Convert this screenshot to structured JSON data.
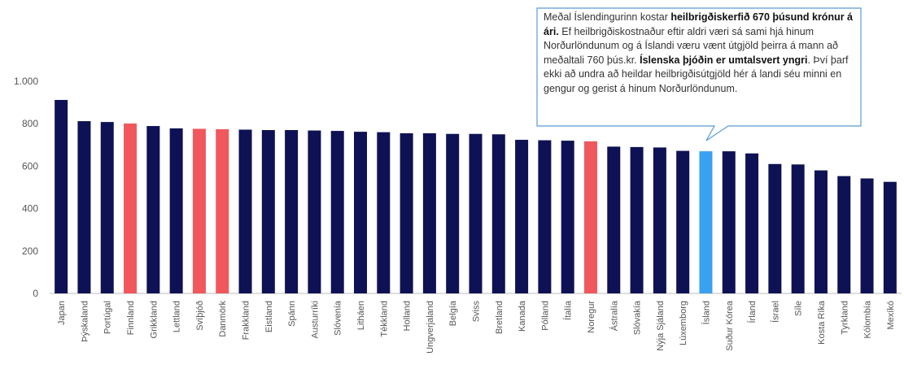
{
  "chart_data": {
    "type": "bar",
    "categories": [
      "Japan",
      "Þýskaland",
      "Portúgal",
      "Finnland",
      "Grikkland",
      "Lettland",
      "Svíþjóð",
      "Danmörk",
      "Frakkland",
      "Eistland",
      "Spánn",
      "Austurríki",
      "Slóvenía",
      "Litháen",
      "Tékkland",
      "Holland",
      "Ungverjaland",
      "Belgía",
      "Sviss",
      "Bretland",
      "Kanada",
      "Pólland",
      "Ítalía",
      "Noregur",
      "Ástralía",
      "Slóvakía",
      "Nýja Sjáland",
      "Lúxemborg",
      "Ísland",
      "Suður Kórea",
      "Írland",
      "Ísrael",
      "Síle",
      "Kosta Ríka",
      "Tyrkland",
      "Kólombía",
      "Mexíkó"
    ],
    "values": [
      912,
      812,
      808,
      801,
      789,
      778,
      776,
      774,
      772,
      770,
      770,
      768,
      766,
      762,
      760,
      755,
      755,
      752,
      752,
      750,
      724,
      722,
      720,
      717,
      692,
      690,
      688,
      672,
      670,
      670,
      660,
      610,
      608,
      580,
      553,
      542,
      526
    ],
    "colors": [
      "#0e1254",
      "#0e1254",
      "#0e1254",
      "#f0585e",
      "#0e1254",
      "#0e1254",
      "#f0585e",
      "#f0585e",
      "#0e1254",
      "#0e1254",
      "#0e1254",
      "#0e1254",
      "#0e1254",
      "#0e1254",
      "#0e1254",
      "#0e1254",
      "#0e1254",
      "#0e1254",
      "#0e1254",
      "#0e1254",
      "#0e1254",
      "#0e1254",
      "#0e1254",
      "#f0585e",
      "#0e1254",
      "#0e1254",
      "#0e1254",
      "#0e1254",
      "#3aa0f0",
      "#0e1254",
      "#0e1254",
      "#0e1254",
      "#0e1254",
      "#0e1254",
      "#0e1254",
      "#0e1254",
      "#0e1254"
    ],
    "ylim": [
      0,
      1000
    ],
    "yticks": [
      0,
      200,
      400,
      600,
      800,
      {
        "value": 1000,
        "label": "1.000"
      }
    ],
    "grid": false,
    "annotation": [
      {
        "text": "Meðal Íslendingurinn kostar ",
        "bold": false
      },
      {
        "text": "heilbrigðiskerfið 670 þúsund krónur á ári.",
        "bold": true
      },
      {
        "text": " Ef heilbrigðiskostnaður eftir aldri væri sá sami hjá hinum Norðurlöndunum og á Íslandi væru vænt útgjöld þeirra á mann að meðaltali 760 þús.kr. ",
        "bold": false
      },
      {
        "text": "Íslenska þjóðin er umtalsvert yngri",
        "bold": true
      },
      {
        "text": ". Því þarf ekki að undra að heildar heilbrigðisútgjöld hér á landi séu minni en gengur og gerist á hinum Norðurlöndunum.",
        "bold": false
      }
    ]
  }
}
